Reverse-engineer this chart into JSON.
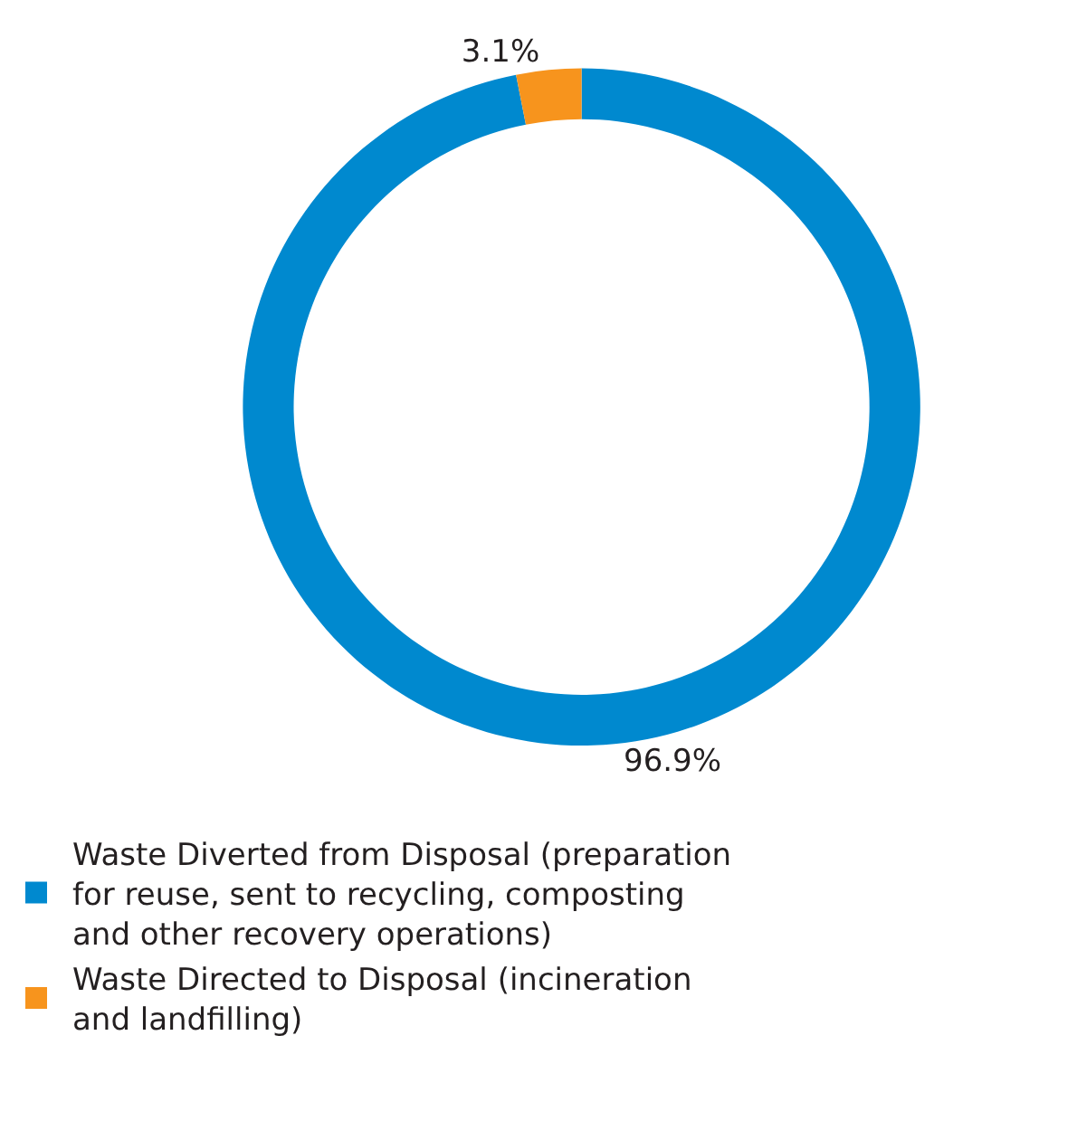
{
  "chart_data": {
    "type": "donut",
    "categories": [
      "Waste Diverted from Disposal (preparation for reuse, sent to recycling, composting and other recovery operations)",
      "Waste Directed to Disposal (incineration and landfilling)"
    ],
    "values": [
      96.9,
      3.1
    ],
    "colors": [
      "#0089cf",
      "#f7941d"
    ],
    "value_labels": [
      "96.9%",
      "3.1%"
    ],
    "legend": "bottom"
  }
}
